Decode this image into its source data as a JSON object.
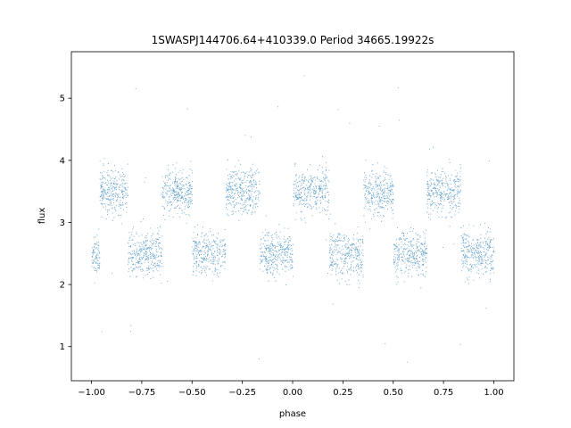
{
  "chart_data": {
    "type": "scatter",
    "title": "1SWASPJ144706.64+410339.0 Period 34665.19922s",
    "xlabel": "phase",
    "ylabel": "flux",
    "xlim": [
      -1.1,
      1.1
    ],
    "ylim": [
      0.45,
      5.75
    ],
    "xticks": [
      -1.0,
      -0.75,
      -0.5,
      -0.25,
      0.0,
      0.25,
      0.5,
      0.75,
      1.0
    ],
    "xtick_labels": [
      "−1.00",
      "−0.75",
      "−0.50",
      "−0.25",
      "0.00",
      "0.25",
      "0.50",
      "0.75",
      "1.00"
    ],
    "yticks": [
      1,
      2,
      3,
      4,
      5
    ],
    "ytick_labels": [
      "1",
      "2",
      "3",
      "4",
      "5"
    ],
    "grid": false,
    "legend": "none",
    "marker_color": "#1f77b4",
    "light_curve": {
      "description": "phase-folded light curve, two periods shown (phase -1 to 1), alternating flux between ~3.5 and ~2.5 every 0.33 phase",
      "high_level": 3.5,
      "low_level": 2.5,
      "high_phase_centers": [
        -0.92,
        -0.58,
        -0.25,
        0.08,
        0.42,
        0.75
      ],
      "low_phase_centers": [
        -1.0,
        -0.72,
        -0.42,
        -0.08,
        0.28,
        0.58,
        0.92
      ],
      "scatter_sigma": 0.18,
      "outlier_range": [
        0.7,
        5.5
      ]
    }
  }
}
